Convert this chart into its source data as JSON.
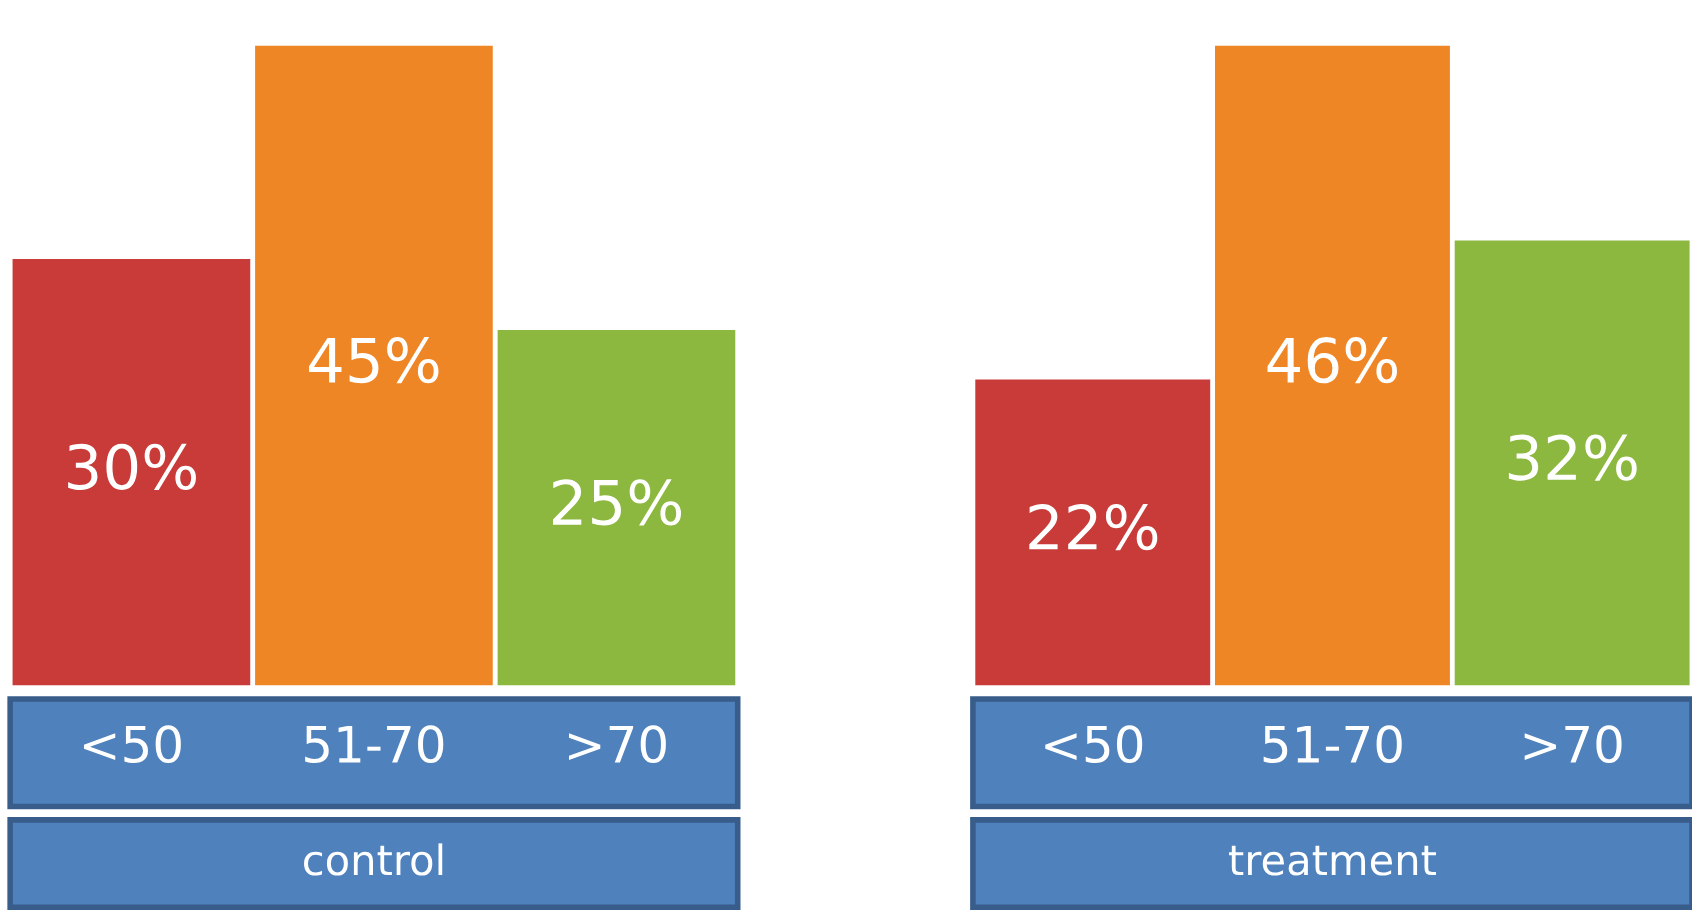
{
  "chart_data": [
    {
      "type": "bar",
      "title": "control",
      "categories": [
        "<50",
        "51-70",
        ">70"
      ],
      "values": [
        30,
        45,
        25
      ],
      "colors": [
        "#c83b38",
        "#ee8626",
        "#8cb840"
      ],
      "value_labels": [
        "30%",
        "45%",
        "25%"
      ]
    },
    {
      "type": "bar",
      "title": "treatment",
      "categories": [
        "<50",
        "51-70",
        ">70"
      ],
      "values": [
        22,
        46,
        32
      ],
      "colors": [
        "#c83b38",
        "#ee8626",
        "#8cb840"
      ],
      "value_labels": [
        "22%",
        "46%",
        "32%"
      ]
    }
  ]
}
